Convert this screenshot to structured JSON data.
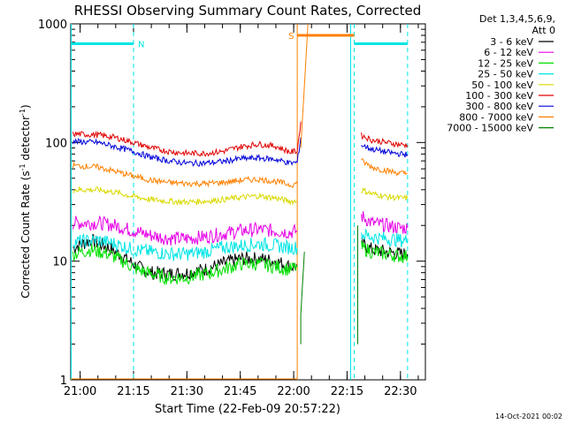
{
  "chart_data": {
    "type": "line",
    "title": "RHESSI Observing Summary Count Rates, Corrected",
    "xlabel": "Start Time (22-Feb-09 20:57:22)",
    "ylabel_main": "Corrected Count Rate (s",
    "ylabel_sup1": "-1",
    "ylabel_mid": " detector",
    "ylabel_sup2": "-1",
    "ylabel_end": ")",
    "yscale": "log",
    "ylim": [
      1,
      1000
    ],
    "xlim": [
      "20:57:22",
      "22:37:00"
    ],
    "x_ticks": [
      "21:00",
      "21:15",
      "21:30",
      "21:45",
      "22:00",
      "22:15",
      "22:30"
    ],
    "y_ticks": [
      "1",
      "10",
      "100",
      "1000"
    ],
    "legend_header": [
      "Det 1,3,4,5,6,9,",
      "Att 0"
    ],
    "legend_position": "right",
    "footer": "14-Oct-2021 00:02",
    "colors": {
      "axes": "#000000",
      "3-6": "#000000",
      "6-12": "#e600e6",
      "12-25": "#00e000",
      "25-50": "#00e5e5",
      "50-100": "#d9d900",
      "100-300": "#e00000",
      "300-800": "#0000d8",
      "800-7000": "#ff8000",
      "7000-15000": "#008000"
    },
    "series": [
      {
        "name": "3 - 6 keV",
        "color_key": "3-6",
        "segments": [
          {
            "x": [
              "20:58",
              "21:03",
              "21:08",
              "21:12",
              "21:16",
              "21:20",
              "21:25",
              "21:30",
              "21:35",
              "21:40",
              "21:45",
              "21:50",
              "21:55",
              "21:59",
              "22:01"
            ],
            "y": [
              13,
              15,
              13,
              11,
              9,
              8,
              7.8,
              8,
              8.5,
              9.5,
              10.5,
              10.5,
              10,
              9,
              9
            ]
          },
          {
            "x": [
              "22:19",
              "22:22",
              "22:26",
              "22:30",
              "22:32"
            ],
            "y": [
              14,
              12.5,
              12,
              11.5,
              11.5
            ]
          }
        ]
      },
      {
        "name": "6 - 12 keV",
        "color_key": "6-12",
        "segments": [
          {
            "x": [
              "20:58",
              "21:05",
              "21:10",
              "21:15",
              "21:20",
              "21:25",
              "21:30",
              "21:35",
              "21:40",
              "21:45",
              "21:50",
              "21:55",
              "21:59",
              "22:01"
            ],
            "y": [
              21,
              21,
              20,
              18,
              16.5,
              15.5,
              15.5,
              16,
              17,
              18,
              18.5,
              18,
              17.5,
              18
            ]
          },
          {
            "x": [
              "22:19",
              "22:22",
              "22:26",
              "22:30",
              "22:32"
            ],
            "y": [
              24,
              21,
              20,
              19,
              19
            ]
          }
        ]
      },
      {
        "name": "12 - 25 keV",
        "color_key": "12-25",
        "segments": [
          {
            "x": [
              "20:58",
              "21:03",
              "21:08",
              "21:12",
              "21:16",
              "21:20",
              "21:25",
              "21:30",
              "21:35",
              "21:40",
              "21:45",
              "21:50",
              "21:55",
              "21:59",
              "22:01"
            ],
            "y": [
              11.5,
              12.5,
              11.5,
              10,
              8.5,
              7.8,
              7.2,
              7.3,
              7.8,
              8.5,
              9.5,
              9.5,
              9,
              8.5,
              9
            ]
          },
          {
            "x": [
              "22:19",
              "22:22",
              "22:26",
              "22:30",
              "22:32"
            ],
            "y": [
              13,
              12,
              11.5,
              11,
              11
            ]
          }
        ]
      },
      {
        "name": "25 - 50 keV",
        "color_key": "25-50",
        "segments": [
          {
            "x": [
              "20:58",
              "21:05",
              "21:10",
              "21:15",
              "21:20",
              "21:25",
              "21:30",
              "21:35",
              "21:40",
              "21:45",
              "21:50",
              "21:55",
              "21:59",
              "22:01"
            ],
            "y": [
              14.5,
              15,
              14,
              12.5,
              12,
              11.5,
              11.5,
              12,
              13,
              13.5,
              14,
              13.5,
              13,
              13
            ]
          },
          {
            "x": [
              "22:19",
              "22:22",
              "22:26",
              "22:30",
              "22:32"
            ],
            "y": [
              17,
              16,
              15.5,
              15,
              15
            ]
          }
        ]
      },
      {
        "name": "50 - 100 keV",
        "color_key": "50-100",
        "segments": [
          {
            "x": [
              "20:58",
              "21:05",
              "21:10",
              "21:15",
              "21:20",
              "21:25",
              "21:30",
              "21:35",
              "21:40",
              "21:45",
              "21:50",
              "21:55",
              "21:59",
              "22:01"
            ],
            "y": [
              40,
              40,
              38,
              35,
              33,
              32,
              31.5,
              32,
              33,
              34.5,
              35.5,
              34,
              32,
              32
            ]
          },
          {
            "x": [
              "22:19",
              "22:22",
              "22:26",
              "22:30",
              "22:32"
            ],
            "y": [
              40,
              37,
              35,
              34,
              34
            ]
          }
        ]
      },
      {
        "name": "100 - 300 keV",
        "color_key": "100-300",
        "segments": [
          {
            "x": [
              "20:58",
              "21:05",
              "21:10",
              "21:15",
              "21:20",
              "21:25",
              "21:30",
              "21:35",
              "21:40",
              "21:45",
              "21:50",
              "21:55",
              "21:59",
              "22:01",
              "22:02"
            ],
            "y": [
              118,
              116,
              110,
              100,
              90,
              84,
              81,
              81,
              84,
              92,
              97,
              93,
              83,
              85,
              150
            ]
          },
          {
            "x": [
              "22:19",
              "22:22",
              "22:26",
              "22:30",
              "22:32"
            ],
            "y": [
              115,
              105,
              100,
              96,
              95
            ]
          }
        ]
      },
      {
        "name": "300 - 800 keV",
        "color_key": "300-800",
        "segments": [
          {
            "x": [
              "20:58",
              "21:05",
              "21:10",
              "21:15",
              "21:20",
              "21:25",
              "21:30",
              "21:35",
              "21:40",
              "21:45",
              "21:50",
              "21:55",
              "21:59",
              "22:01",
              "22:02"
            ],
            "y": [
              102,
              100,
              92,
              84,
              75,
              70,
              67,
              67,
              69,
              73,
              74,
              72,
              67,
              68,
              110
            ]
          },
          {
            "x": [
              "22:19",
              "22:22",
              "22:26",
              "22:30",
              "22:32"
            ],
            "y": [
              95,
              88,
              83,
              80,
              79
            ]
          }
        ]
      },
      {
        "name": "800 - 7000 keV",
        "color_key": "800-7000",
        "segments": [
          {
            "x": [
              "20:58",
              "21:05",
              "21:10",
              "21:15",
              "21:20",
              "21:25",
              "21:30",
              "21:35",
              "21:40",
              "21:45",
              "21:50",
              "21:55",
              "21:59",
              "22:01"
            ],
            "y": [
              64,
              62,
              57,
              52,
              48,
              46,
              45,
              45,
              46,
              48,
              49,
              47,
              44,
              45
            ]
          },
          {
            "x": [
              "22:02",
              "22:03",
              "22:04"
            ],
            "y": [
              90,
              300,
              1000
            ]
          },
          {
            "x": [
              "22:19",
              "22:22",
              "22:26",
              "22:30",
              "22:32"
            ],
            "y": [
              70,
              62,
              58,
              55,
              55
            ]
          }
        ]
      },
      {
        "name": "7000 - 15000 keV",
        "color_key": "7000-15000",
        "segments": [
          {
            "x": [
              "22:02",
              "22:02",
              "22:03"
            ],
            "y": [
              2,
              3.5,
              12
            ]
          },
          {
            "x": [
              "22:18",
              "22:18",
              "22:18"
            ],
            "y": [
              2,
              6,
              20
            ]
          }
        ]
      }
    ],
    "markers": [
      {
        "label": "N",
        "color_key": "25-50",
        "bar_x": [
          "20:57:22",
          "21:15"
        ],
        "bar_y": 680
      },
      {
        "label": "S",
        "color_key": "800-7000",
        "bar_x": [
          "22:01",
          "22:17"
        ],
        "bar_y": 800
      }
    ],
    "state_lines": [
      {
        "x": "20:57:30",
        "color_key": "25-50",
        "style": "solid"
      },
      {
        "x": "21:15",
        "color_key": "25-50",
        "style": "dashed"
      },
      {
        "x": "22:01",
        "color_key": "800-7000",
        "style": "solid"
      },
      {
        "x": "22:16",
        "color_key": "25-50",
        "style": "solid"
      },
      {
        "x": "22:17",
        "color_key": "25-50",
        "style": "dashed"
      },
      {
        "x": "22:32",
        "color_key": "25-50",
        "style": "dashed"
      }
    ],
    "att_trace": {
      "color_key": "800-7000",
      "y": 1,
      "x": [
        "20:57:22",
        "22:01"
      ]
    }
  }
}
